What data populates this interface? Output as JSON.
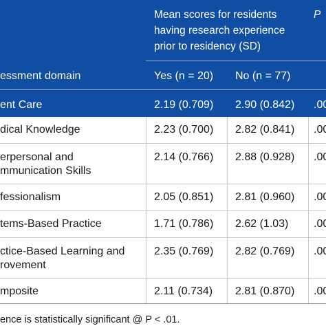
{
  "header": {
    "group_title": "Mean scores for residents having research experience prior to residency (SD)",
    "p_label": "P",
    "domain_col": "essment domain",
    "yes_col": "Yes (n = 20)",
    "no_col": "No (n = 77)"
  },
  "rows": [
    {
      "domain": "ent Care",
      "yes": "2.19 (0.709)",
      "no": "2.90 (0.842)",
      "p": ".00"
    },
    {
      "domain": "dical Knowledge",
      "yes": "2.23 (0.700)",
      "no": "2.82 (0.841)",
      "p": ".00"
    },
    {
      "domain": "erpersonal and",
      "domain2": "mmunication Skills",
      "yes": "2.14 (0.766)",
      "no": "2.88 (0.928)",
      "p": ".00"
    },
    {
      "domain": "fessionalism",
      "yes": "2.05 (0.851)",
      "no": "2.81 (0.960)",
      "p": ".00"
    },
    {
      "domain": "tems-Based Practice",
      "yes": "1.71 (0.786)",
      "no": "2.62 (1.03)",
      "p": ".00"
    },
    {
      "domain": "ctice-Based Learning and",
      "domain2": "rovement",
      "yes": "2.35 (0.769)",
      "no": "2.82 (0.769)",
      "p": ".00"
    },
    {
      "domain": "mposite",
      "yes": "2.11 (0.734)",
      "no": "2.81 (0.870)",
      "p": ".00"
    }
  ],
  "footnote": "ence is statistically significant @ P < .01."
}
